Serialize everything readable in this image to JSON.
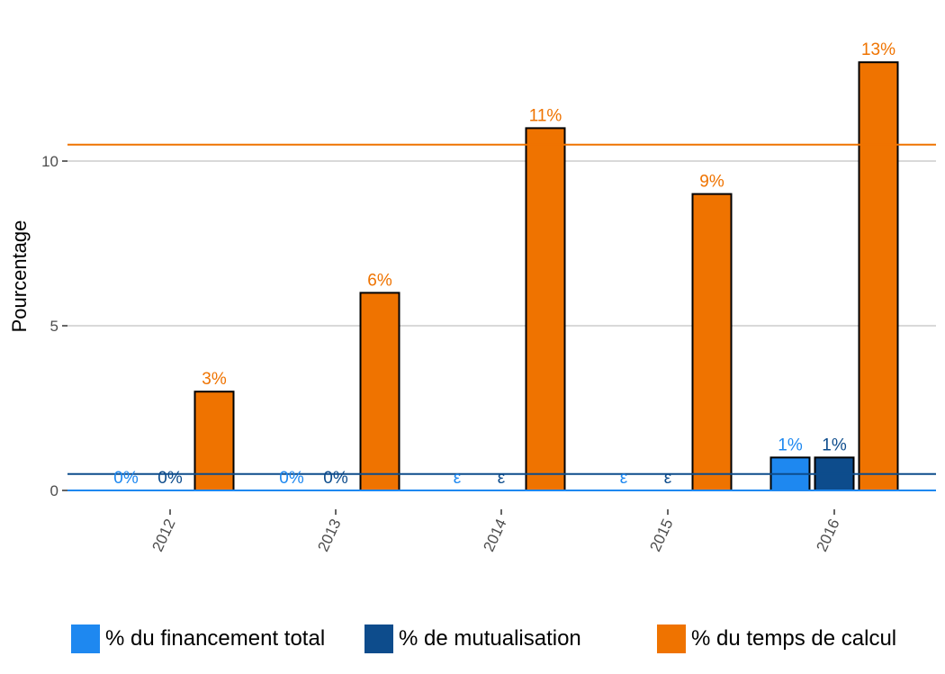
{
  "chart_data": {
    "type": "bar",
    "title": "",
    "xlabel": "",
    "ylabel": "Pourcentage",
    "ylim": [
      0,
      13.5
    ],
    "yticks": [
      0,
      5,
      10
    ],
    "grid": true,
    "legend_position": "bottom",
    "categories": [
      "2012",
      "2013",
      "2014",
      "2015",
      "2016"
    ],
    "series": [
      {
        "name": "% du financement total",
        "color": "#1e88f0",
        "values": [
          0,
          0,
          0,
          0,
          1
        ],
        "labels": [
          "0%",
          "0%",
          "ε",
          "ε",
          "1%"
        ]
      },
      {
        "name": "% de mutualisation",
        "color": "#0d4c8c",
        "values": [
          0,
          0,
          0,
          0,
          1
        ],
        "labels": [
          "0%",
          "0%",
          "ε",
          "ε",
          "1%"
        ]
      },
      {
        "name": "% du temps de calcul",
        "color": "#ef7300",
        "values": [
          3,
          6,
          11,
          9,
          13
        ],
        "labels": [
          "3%",
          "6%",
          "11%",
          "9%",
          "13%"
        ]
      }
    ],
    "reference_lines": [
      {
        "series": "% du financement total",
        "value": 0,
        "color": "#1e88f0"
      },
      {
        "series": "% de mutualisation",
        "value": 0.5,
        "color": "#0d4c8c"
      },
      {
        "series": "% du temps de calcul",
        "value": 10.5,
        "color": "#ef7300"
      }
    ]
  }
}
